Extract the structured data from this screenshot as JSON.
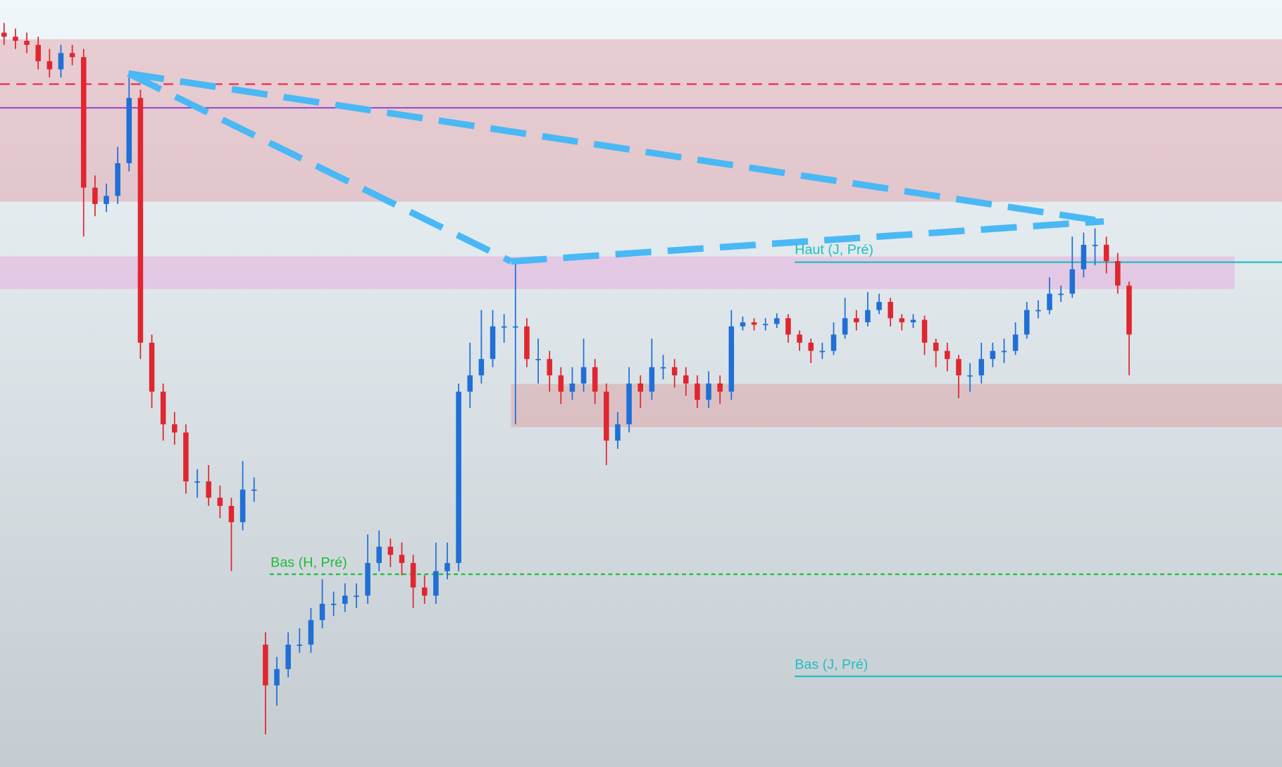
{
  "chart_data": {
    "type": "candlestick",
    "ylim": [
      0,
      940
    ],
    "up_color": "#1f6fd6",
    "down_color": "#e0262f",
    "open": [
      900,
      895,
      890,
      885,
      865,
      855,
      875,
      870,
      710,
      690,
      700,
      740,
      820,
      520,
      460,
      420,
      410,
      350,
      350,
      330,
      320,
      300,
      340,
      150,
      100,
      120,
      150,
      150,
      180,
      200,
      200,
      210,
      210,
      250,
      270,
      260,
      250,
      220,
      210,
      240,
      250,
      460,
      480,
      500,
      540,
      540,
      540,
      500,
      500,
      480,
      460,
      470,
      490,
      460,
      400,
      420,
      470,
      460,
      490,
      490,
      480,
      470,
      450,
      470,
      460,
      540,
      545,
      542,
      543,
      550,
      530,
      520,
      510,
      510,
      530,
      550,
      545,
      560,
      570,
      550,
      545,
      548,
      520,
      510,
      500,
      480,
      480,
      500,
      510,
      510,
      530,
      560,
      560,
      580,
      580,
      610,
      640,
      640,
      620,
      590
    ],
    "high": [
      912,
      905,
      900,
      895,
      880,
      885,
      885,
      880,
      725,
      715,
      760,
      845,
      830,
      530,
      470,
      435,
      420,
      365,
      370,
      345,
      330,
      375,
      355,
      165,
      135,
      165,
      170,
      195,
      230,
      215,
      225,
      225,
      285,
      290,
      280,
      275,
      260,
      235,
      275,
      275,
      470,
      520,
      560,
      560,
      555,
      620,
      550,
      525,
      510,
      490,
      490,
      525,
      500,
      470,
      435,
      490,
      480,
      525,
      505,
      500,
      490,
      480,
      485,
      480,
      560,
      552,
      550,
      550,
      556,
      555,
      535,
      525,
      520,
      545,
      575,
      560,
      582,
      580,
      575,
      555,
      555,
      553,
      525,
      520,
      505,
      495,
      520,
      520,
      525,
      545,
      570,
      572,
      600,
      590,
      650,
      655,
      660,
      650,
      630,
      595
    ],
    "low": [
      885,
      880,
      875,
      855,
      845,
      845,
      860,
      650,
      675,
      680,
      690,
      730,
      500,
      440,
      400,
      395,
      335,
      330,
      320,
      305,
      240,
      290,
      325,
      40,
      75,
      110,
      140,
      140,
      170,
      185,
      190,
      195,
      200,
      240,
      245,
      235,
      195,
      200,
      200,
      230,
      240,
      440,
      470,
      490,
      520,
      420,
      490,
      470,
      460,
      445,
      450,
      460,
      445,
      370,
      390,
      410,
      440,
      450,
      475,
      465,
      455,
      440,
      440,
      445,
      450,
      535,
      535,
      535,
      538,
      520,
      510,
      495,
      500,
      505,
      525,
      535,
      540,
      555,
      540,
      535,
      538,
      505,
      490,
      485,
      452,
      460,
      470,
      490,
      495,
      505,
      525,
      550,
      555,
      570,
      575,
      600,
      615,
      605,
      580,
      480
    ],
    "close": [
      895,
      890,
      885,
      865,
      855,
      875,
      870,
      710,
      690,
      700,
      740,
      820,
      520,
      460,
      420,
      410,
      350,
      350,
      330,
      320,
      300,
      340,
      340,
      100,
      120,
      150,
      150,
      180,
      200,
      200,
      210,
      210,
      250,
      270,
      260,
      250,
      220,
      210,
      240,
      250,
      460,
      480,
      500,
      540,
      540,
      540,
      500,
      500,
      480,
      460,
      470,
      490,
      460,
      400,
      420,
      470,
      460,
      490,
      490,
      480,
      470,
      450,
      470,
      460,
      540,
      545,
      542,
      543,
      550,
      530,
      520,
      510,
      510,
      530,
      550,
      545,
      560,
      570,
      550,
      545,
      548,
      520,
      510,
      500,
      480,
      480,
      500,
      510,
      510,
      530,
      560,
      560,
      580,
      580,
      610,
      640,
      640,
      620,
      590,
      530
    ],
    "annotations": [
      "Haut (J, Pré)",
      "Bas (H, Pré)",
      "Bas (J, Pré)"
    ]
  }
}
